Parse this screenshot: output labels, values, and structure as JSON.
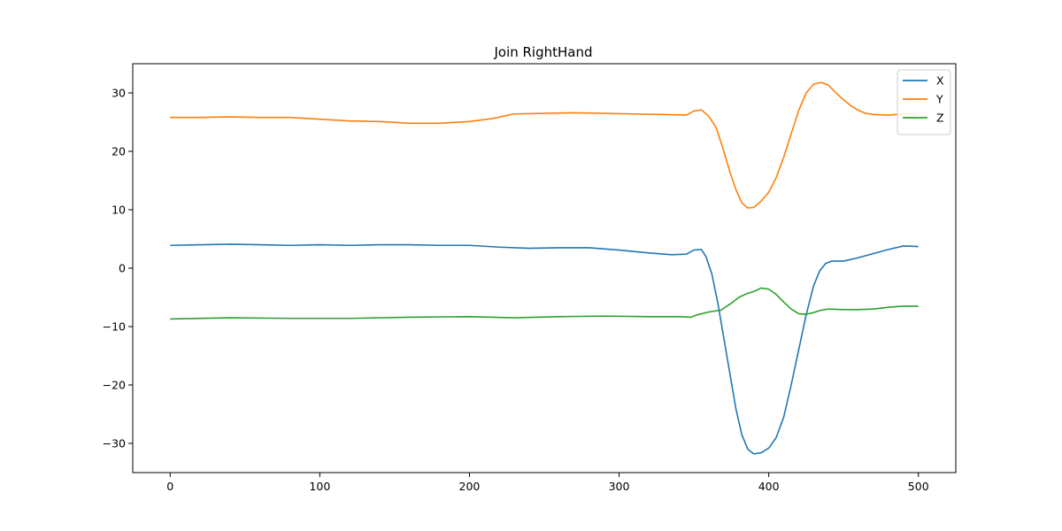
{
  "chart_data": {
    "type": "line",
    "title": "Join RightHand",
    "xlabel": "",
    "ylabel": "",
    "xlim": [
      -25,
      525
    ],
    "ylim": [
      -35,
      35
    ],
    "xticks": [
      0,
      100,
      200,
      300,
      400,
      500
    ],
    "yticks": [
      -30,
      -20,
      -10,
      0,
      10,
      20,
      30
    ],
    "grid": false,
    "legend": "top-right",
    "series": [
      {
        "name": "X",
        "color": "#1f77b4",
        "points": [
          [
            0,
            3.9
          ],
          [
            20,
            4.0
          ],
          [
            40,
            4.1
          ],
          [
            60,
            4.0
          ],
          [
            80,
            3.9
          ],
          [
            100,
            4.0
          ],
          [
            120,
            3.9
          ],
          [
            140,
            4.0
          ],
          [
            160,
            4.0
          ],
          [
            180,
            3.9
          ],
          [
            200,
            3.9
          ],
          [
            220,
            3.6
          ],
          [
            240,
            3.4
          ],
          [
            260,
            3.5
          ],
          [
            280,
            3.5
          ],
          [
            300,
            3.1
          ],
          [
            320,
            2.6
          ],
          [
            335,
            2.3
          ],
          [
            345,
            2.4
          ],
          [
            350,
            3.1
          ],
          [
            355,
            3.2
          ],
          [
            358,
            2.0
          ],
          [
            362,
            -1.0
          ],
          [
            366,
            -6.0
          ],
          [
            370,
            -12.0
          ],
          [
            374,
            -18.0
          ],
          [
            378,
            -24.0
          ],
          [
            382,
            -28.5
          ],
          [
            386,
            -31.0
          ],
          [
            390,
            -31.8
          ],
          [
            395,
            -31.6
          ],
          [
            400,
            -30.8
          ],
          [
            405,
            -29.0
          ],
          [
            410,
            -25.5
          ],
          [
            415,
            -20.0
          ],
          [
            420,
            -14.0
          ],
          [
            425,
            -8.0
          ],
          [
            430,
            -3.0
          ],
          [
            434,
            -0.5
          ],
          [
            438,
            0.8
          ],
          [
            442,
            1.2
          ],
          [
            450,
            1.2
          ],
          [
            460,
            1.8
          ],
          [
            470,
            2.5
          ],
          [
            480,
            3.2
          ],
          [
            490,
            3.8
          ],
          [
            500,
            3.7
          ]
        ]
      },
      {
        "name": "Y",
        "color": "#ff7f0e",
        "points": [
          [
            0,
            25.8
          ],
          [
            20,
            25.8
          ],
          [
            40,
            25.9
          ],
          [
            60,
            25.8
          ],
          [
            80,
            25.8
          ],
          [
            100,
            25.5
          ],
          [
            120,
            25.2
          ],
          [
            140,
            25.1
          ],
          [
            160,
            24.8
          ],
          [
            180,
            24.8
          ],
          [
            200,
            25.1
          ],
          [
            215,
            25.6
          ],
          [
            230,
            26.4
          ],
          [
            250,
            26.5
          ],
          [
            270,
            26.6
          ],
          [
            290,
            26.5
          ],
          [
            310,
            26.4
          ],
          [
            330,
            26.3
          ],
          [
            345,
            26.2
          ],
          [
            350,
            26.9
          ],
          [
            355,
            27.1
          ],
          [
            360,
            26.0
          ],
          [
            365,
            24.0
          ],
          [
            370,
            20.0
          ],
          [
            374,
            16.5
          ],
          [
            378,
            13.5
          ],
          [
            382,
            11.2
          ],
          [
            386,
            10.3
          ],
          [
            390,
            10.4
          ],
          [
            395,
            11.5
          ],
          [
            400,
            13.0
          ],
          [
            405,
            15.5
          ],
          [
            410,
            19.0
          ],
          [
            415,
            23.0
          ],
          [
            420,
            27.0
          ],
          [
            425,
            30.0
          ],
          [
            430,
            31.5
          ],
          [
            435,
            31.8
          ],
          [
            440,
            31.3
          ],
          [
            445,
            30.0
          ],
          [
            450,
            28.8
          ],
          [
            455,
            27.8
          ],
          [
            460,
            27.0
          ],
          [
            465,
            26.5
          ],
          [
            470,
            26.3
          ],
          [
            480,
            26.2
          ],
          [
            490,
            26.4
          ],
          [
            500,
            26.3
          ]
        ]
      },
      {
        "name": "Z",
        "color": "#2ca02c",
        "points": [
          [
            0,
            -8.7
          ],
          [
            40,
            -8.5
          ],
          [
            80,
            -8.6
          ],
          [
            120,
            -8.6
          ],
          [
            160,
            -8.4
          ],
          [
            200,
            -8.3
          ],
          [
            230,
            -8.5
          ],
          [
            260,
            -8.3
          ],
          [
            290,
            -8.2
          ],
          [
            320,
            -8.3
          ],
          [
            340,
            -8.3
          ],
          [
            348,
            -8.4
          ],
          [
            352,
            -8.0
          ],
          [
            360,
            -7.5
          ],
          [
            368,
            -7.2
          ],
          [
            375,
            -6.0
          ],
          [
            380,
            -5.0
          ],
          [
            385,
            -4.4
          ],
          [
            390,
            -4.0
          ],
          [
            395,
            -3.4
          ],
          [
            400,
            -3.6
          ],
          [
            405,
            -4.5
          ],
          [
            410,
            -5.8
          ],
          [
            415,
            -7.0
          ],
          [
            420,
            -7.8
          ],
          [
            425,
            -7.9
          ],
          [
            430,
            -7.6
          ],
          [
            435,
            -7.2
          ],
          [
            440,
            -7.0
          ],
          [
            450,
            -7.1
          ],
          [
            460,
            -7.1
          ],
          [
            470,
            -7.0
          ],
          [
            480,
            -6.7
          ],
          [
            490,
            -6.5
          ],
          [
            500,
            -6.5
          ]
        ]
      }
    ]
  }
}
